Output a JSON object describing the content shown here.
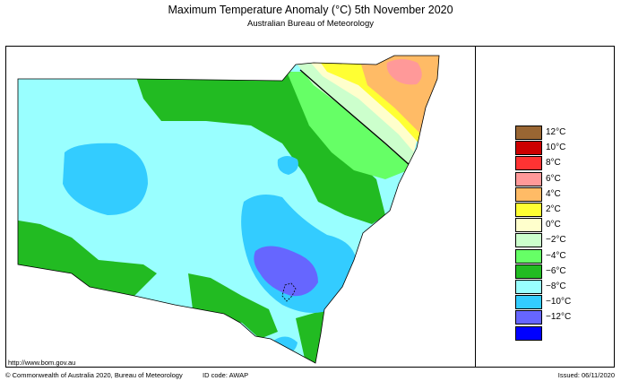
{
  "header": {
    "title": "Maximum Temperature Anomaly (°C)  5th November 2020",
    "subtitle": "Australian Bureau of Meteorology"
  },
  "legend": {
    "items": [
      {
        "label": "12°C",
        "color": "#996633"
      },
      {
        "label": "10°C",
        "color": "#cc0000"
      },
      {
        "label": "8°C",
        "color": "#ff3333"
      },
      {
        "label": "6°C",
        "color": "#ff9999"
      },
      {
        "label": "4°C",
        "color": "#ffbb66"
      },
      {
        "label": "2°C",
        "color": "#ffff33"
      },
      {
        "label": "0°C",
        "color": "#ffffcc"
      },
      {
        "label": "−2°C",
        "color": "#ccffcc"
      },
      {
        "label": "−4°C",
        "color": "#66ff66"
      },
      {
        "label": "−6°C",
        "color": "#22bb22"
      },
      {
        "label": "−8°C",
        "color": "#99ffff"
      },
      {
        "label": "−10°C",
        "color": "#33ccff"
      },
      {
        "label": "−12°C",
        "color": "#6666ff"
      },
      {
        "label": "",
        "color": "#0000ff"
      }
    ]
  },
  "footer": {
    "url": "http://www.bom.gov.au",
    "copyright": "© Commonwealth of Australia 2020, Bureau of Meteorology",
    "id_code": "ID code: AWAP",
    "issued": "Issued: 06/11/2020"
  }
}
